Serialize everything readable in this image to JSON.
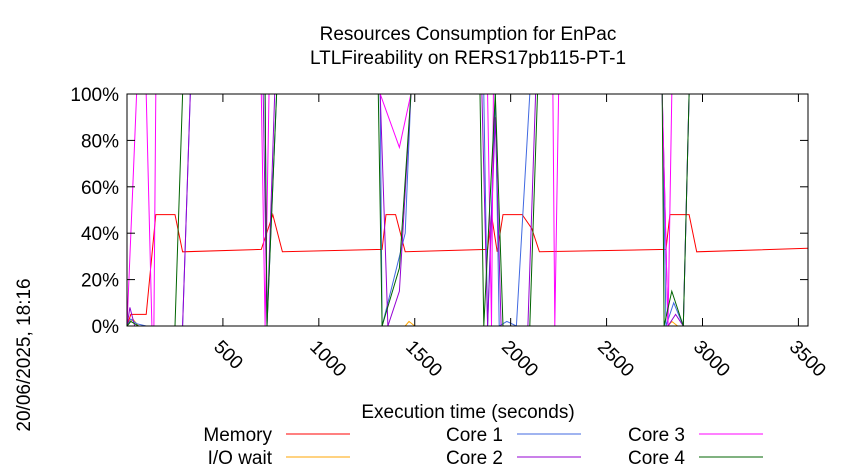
{
  "chart_data": {
    "type": "line",
    "title": "Resources Consumption for EnPac",
    "subtitle": "LTLFireability on RERS17pb115-PT-1",
    "xlabel": "Execution time (seconds)",
    "ylabel": "",
    "side_label": "20/06/2025, 18:16",
    "xlim": [
      0,
      3550
    ],
    "ylim": [
      0,
      100
    ],
    "x_ticks": [
      500,
      1000,
      1500,
      2000,
      2500,
      3000,
      3500
    ],
    "y_ticks": [
      0,
      20,
      40,
      60,
      80,
      100
    ],
    "y_tick_labels": [
      "0%",
      "20%",
      "40%",
      "60%",
      "80%",
      "100%"
    ],
    "grid": false,
    "legend_position": "bottom",
    "series": [
      {
        "name": "Memory",
        "color": "#ff0000",
        "points": [
          [
            0,
            0
          ],
          [
            20,
            5
          ],
          [
            100,
            5
          ],
          [
            150,
            48
          ],
          [
            250,
            48
          ],
          [
            290,
            32
          ],
          [
            700,
            33
          ],
          [
            760,
            48
          ],
          [
            810,
            32
          ],
          [
            1330,
            33
          ],
          [
            1350,
            48
          ],
          [
            1400,
            48
          ],
          [
            1450,
            32
          ],
          [
            1880,
            33
          ],
          [
            1900,
            48
          ],
          [
            1930,
            32
          ],
          [
            1960,
            48
          ],
          [
            2060,
            48
          ],
          [
            2110,
            42
          ],
          [
            2150,
            32
          ],
          [
            2810,
            33
          ],
          [
            2830,
            48
          ],
          [
            2930,
            48
          ],
          [
            2970,
            32
          ],
          [
            3550,
            33.5
          ]
        ]
      },
      {
        "name": "I/O wait",
        "color": "#ffa500",
        "points": [
          [
            0,
            0
          ],
          [
            30,
            3
          ],
          [
            60,
            0
          ],
          [
            1450,
            0
          ],
          [
            1470,
            2
          ],
          [
            1500,
            0
          ],
          [
            2820,
            0
          ],
          [
            2840,
            2
          ],
          [
            2870,
            0
          ],
          [
            3550,
            0
          ]
        ]
      },
      {
        "name": "Core 1",
        "color": "#4169e1",
        "points": [
          [
            0,
            0
          ],
          [
            20,
            3
          ],
          [
            50,
            1
          ],
          [
            100,
            0
          ],
          [
            290,
            0
          ],
          [
            330,
            100
          ],
          [
            720,
            100
          ],
          [
            730,
            0
          ],
          [
            780,
            100
          ],
          [
            1320,
            100
          ],
          [
            1330,
            0
          ],
          [
            1450,
            40
          ],
          [
            1480,
            100
          ],
          [
            1860,
            100
          ],
          [
            1880,
            0
          ],
          [
            1920,
            100
          ],
          [
            1940,
            0
          ],
          [
            1980,
            2
          ],
          [
            2030,
            0
          ],
          [
            2100,
            100
          ],
          [
            2790,
            100
          ],
          [
            2810,
            0
          ],
          [
            2850,
            10
          ],
          [
            2900,
            0
          ],
          [
            2930,
            100
          ],
          [
            3550,
            100
          ]
        ]
      },
      {
        "name": "Core 2",
        "color": "#9400d3",
        "points": [
          [
            0,
            0
          ],
          [
            15,
            8
          ],
          [
            40,
            0
          ],
          [
            290,
            0
          ],
          [
            330,
            100
          ],
          [
            710,
            100
          ],
          [
            730,
            0
          ],
          [
            770,
            100
          ],
          [
            1320,
            100
          ],
          [
            1360,
            0
          ],
          [
            1420,
            15
          ],
          [
            1480,
            100
          ],
          [
            1850,
            100
          ],
          [
            1880,
            0
          ],
          [
            1920,
            90
          ],
          [
            1950,
            0
          ],
          [
            2090,
            0
          ],
          [
            2130,
            100
          ],
          [
            2790,
            100
          ],
          [
            2820,
            0
          ],
          [
            2860,
            5
          ],
          [
            2900,
            0
          ],
          [
            2930,
            100
          ],
          [
            3550,
            100
          ]
        ]
      },
      {
        "name": "Core 3",
        "color": "#ff00ff",
        "points": [
          [
            0,
            0
          ],
          [
            30,
            60
          ],
          [
            50,
            100
          ],
          [
            100,
            100
          ],
          [
            130,
            0
          ],
          [
            140,
            0
          ],
          [
            150,
            100
          ],
          [
            700,
            100
          ],
          [
            720,
            0
          ],
          [
            740,
            100
          ],
          [
            1320,
            100
          ],
          [
            1420,
            77
          ],
          [
            1480,
            100
          ],
          [
            1880,
            100
          ],
          [
            1900,
            0
          ],
          [
            1910,
            100
          ],
          [
            2220,
            100
          ],
          [
            2230,
            0
          ],
          [
            2250,
            100
          ],
          [
            2790,
            100
          ],
          [
            2820,
            0
          ],
          [
            2840,
            100
          ],
          [
            3550,
            100
          ]
        ]
      },
      {
        "name": "Core 4",
        "color": "#006400",
        "points": [
          [
            0,
            0
          ],
          [
            20,
            2
          ],
          [
            60,
            0
          ],
          [
            250,
            0
          ],
          [
            290,
            100
          ],
          [
            720,
            100
          ],
          [
            730,
            0
          ],
          [
            780,
            100
          ],
          [
            1310,
            100
          ],
          [
            1330,
            0
          ],
          [
            1420,
            25
          ],
          [
            1480,
            100
          ],
          [
            1840,
            100
          ],
          [
            1860,
            0
          ],
          [
            1920,
            100
          ],
          [
            1960,
            0
          ],
          [
            2100,
            0
          ],
          [
            2140,
            100
          ],
          [
            2790,
            100
          ],
          [
            2800,
            0
          ],
          [
            2840,
            15
          ],
          [
            2900,
            0
          ],
          [
            2930,
            100
          ],
          [
            3550,
            100
          ]
        ]
      }
    ]
  }
}
